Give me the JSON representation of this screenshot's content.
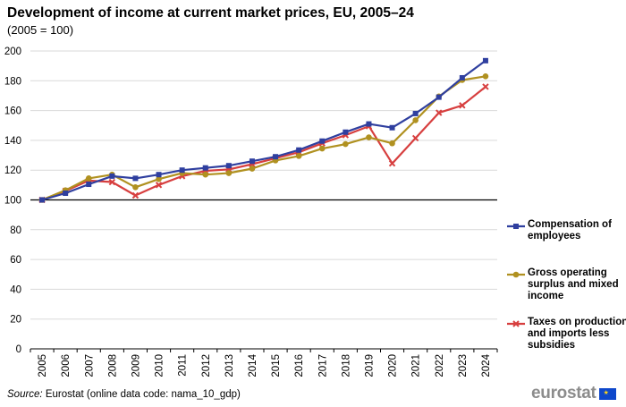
{
  "header": {
    "title": "Development of income at current market prices, EU, 2005–24",
    "subtitle": "(2005 = 100)"
  },
  "footer": {
    "source_label": "Source:",
    "source_text": " Eurostat (online data code: nama_10_gdp)",
    "logo_text": "eurostat"
  },
  "chart_data": {
    "type": "line",
    "title": "Development of income at current market prices, EU, 2005–24",
    "subtitle": "(2005 = 100)",
    "xlabel": "",
    "ylabel": "",
    "ylim": [
      0,
      200
    ],
    "y_ticks": [
      0,
      20,
      40,
      60,
      80,
      100,
      120,
      140,
      160,
      180,
      200
    ],
    "grid": true,
    "legend_position": "right",
    "categories": [
      "2005",
      "2006",
      "2007",
      "2008",
      "2009",
      "2010",
      "2011",
      "2012",
      "2013",
      "2014",
      "2015",
      "2016",
      "2017",
      "2018",
      "2019",
      "2020",
      "2021",
      "2022",
      "2023",
      "2024"
    ],
    "series": [
      {
        "name": "Compensation of employees",
        "color": "#2f3f9f",
        "marker": "square",
        "values": [
          100,
          104.5,
          110.5,
          116,
          114.5,
          117,
          120,
          121.5,
          123,
          126,
          129,
          133.5,
          139.5,
          145.5,
          151,
          148.5,
          158,
          169,
          182,
          193.5
        ]
      },
      {
        "name": "Gross operating surplus and mixed income",
        "color": "#b09120",
        "marker": "circle",
        "values": [
          100,
          106.5,
          114.5,
          117,
          108.5,
          114,
          118,
          117,
          118,
          121,
          126.5,
          129.5,
          134.5,
          137.5,
          142,
          138,
          153.5,
          169.5,
          180.5,
          183
        ]
      },
      {
        "name": "Taxes on production and imports less subsidies",
        "color": "#d73f3f",
        "marker": "x",
        "values": [
          100,
          106,
          113,
          112,
          103,
          110,
          116,
          119.5,
          120.5,
          124,
          128,
          132,
          138,
          143.5,
          149.5,
          124.5,
          141.5,
          158.5,
          163.5,
          176
        ]
      }
    ]
  }
}
